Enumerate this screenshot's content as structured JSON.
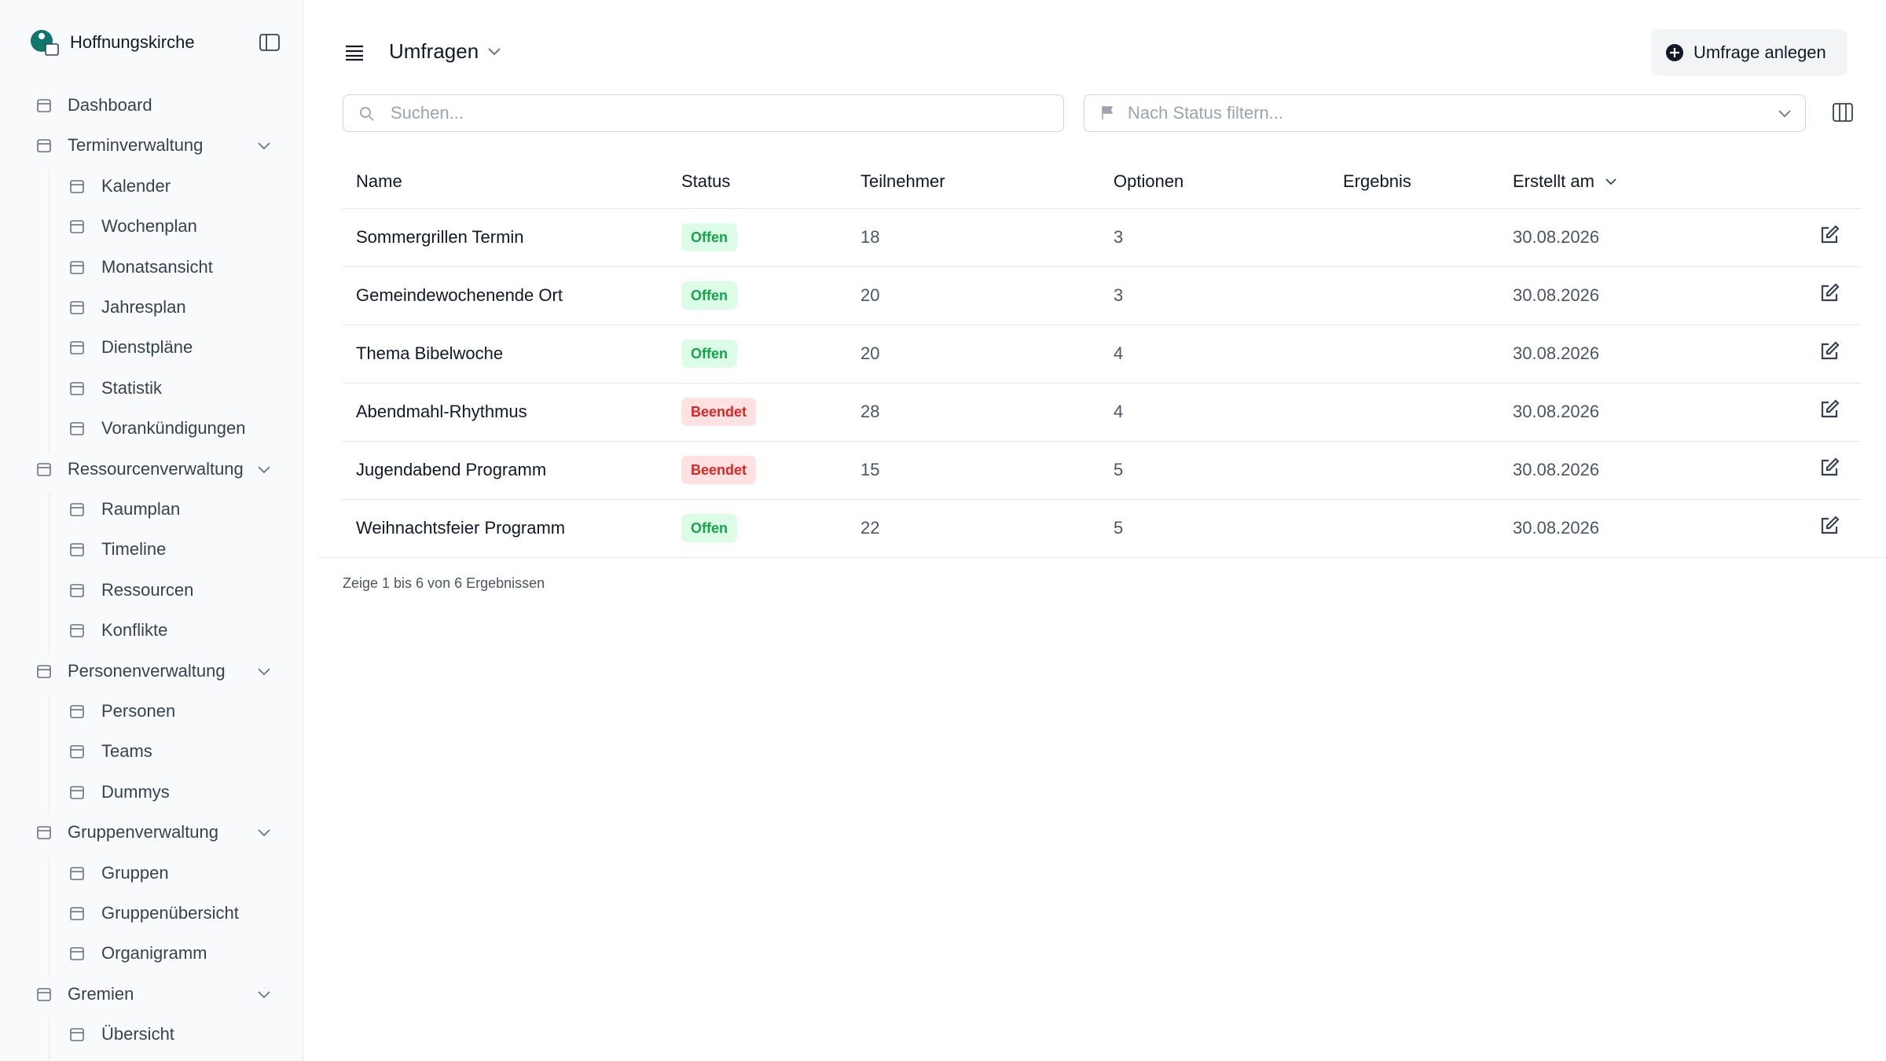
{
  "brand": "Hoffnungskirche",
  "nav": [
    {
      "label": "Dashboard"
    },
    {
      "label": "Terminverwaltung",
      "children": [
        "Kalender",
        "Wochenplan",
        "Monatsansicht",
        "Jahresplan",
        "Dienstpläne",
        "Statistik",
        "Vorankündigungen"
      ]
    },
    {
      "label": "Ressourcenverwaltung",
      "children": [
        "Raumplan",
        "Timeline",
        "Ressourcen",
        "Konflikte"
      ]
    },
    {
      "label": "Personenverwaltung",
      "children": [
        "Personen",
        "Teams",
        "Dummys"
      ]
    },
    {
      "label": "Gruppenverwaltung",
      "children": [
        "Gruppen",
        "Gruppenübersicht",
        "Organigramm"
      ]
    },
    {
      "label": "Gremien",
      "children": [
        "Übersicht"
      ]
    }
  ],
  "header": {
    "title": "Umfragen",
    "button": "Umfrage anlegen"
  },
  "search": {
    "placeholder": "Suchen...",
    "filter_placeholder": "Nach Status filtern..."
  },
  "table": {
    "columns": [
      "Name",
      "Status",
      "Teilnehmer",
      "Optionen",
      "Ergebnis",
      "Erstellt am"
    ],
    "rows": [
      {
        "name": "Sommergrillen Termin",
        "status": "Offen",
        "status_color": "#16a34a",
        "status_bg": "#dcfce7",
        "participants": 18,
        "options": 3,
        "created": "30.08.2026"
      },
      {
        "name": "Gemeindewochenende Ort",
        "status": "Offen",
        "status_color": "#16a34a",
        "status_bg": "#dcfce7",
        "participants": 20,
        "options": 3,
        "created": "30.08.2026"
      },
      {
        "name": "Thema Bibelwoche",
        "status": "Offen",
        "status_color": "#16a34a",
        "status_bg": "#dcfce7",
        "participants": 20,
        "options": 4,
        "created": "30.08.2026"
      },
      {
        "name": "Abendmahl-Rhythmus",
        "status": "Beendet",
        "status_color": "#dc2626",
        "status_bg": "#fee2e2",
        "participants": 28,
        "options": 4,
        "created": "30.08.2026"
      },
      {
        "name": "Jugendabend Programm",
        "status": "Beendet",
        "status_color": "#dc2626",
        "status_bg": "#fee2e2",
        "participants": 15,
        "options": 5,
        "created": "30.08.2026"
      },
      {
        "name": "Weihnachtsfeier Programm",
        "status": "Offen",
        "status_color": "#16a34a",
        "status_bg": "#dcfce7",
        "participants": 22,
        "options": 5,
        "created": "30.08.2026"
      }
    ],
    "footer": "Zeige 1 bis 6 von 6 Ergebnissen"
  }
}
